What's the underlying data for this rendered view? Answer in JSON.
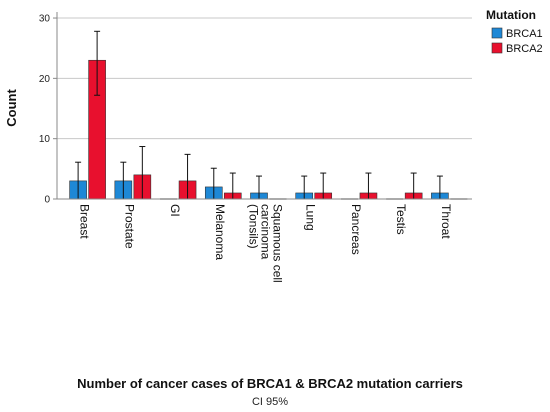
{
  "chart_data": {
    "type": "bar",
    "title": "",
    "xlabel": "Number of cancer cases of BRCA1 & BRCA2 mutation carriers",
    "ylabel": "Count",
    "caption": "CI 95%",
    "legend_title": "Mutation",
    "legend_position": "top-right",
    "ylim": [
      0,
      31
    ],
    "yticks": [
      0,
      10,
      20,
      30
    ],
    "grid": true,
    "categories": [
      "Breast",
      "Prostate",
      "GI",
      "Melanoma",
      "Squamous cell carcinoma (Tonsils)",
      "Lung",
      "Pancreas",
      "Testis",
      "Throat"
    ],
    "category_lines": [
      [
        "Breast"
      ],
      [
        "Prostate"
      ],
      [
        "GI"
      ],
      [
        "Melanoma"
      ],
      [
        "Squamous cell",
        "carcinoma",
        "(Tonsils)"
      ],
      [
        "Lung"
      ],
      [
        "Pancreas"
      ],
      [
        "Testis"
      ],
      [
        "Throat"
      ]
    ],
    "series": [
      {
        "name": "BRCA1",
        "color": "#1e88d6",
        "values": [
          3,
          3,
          0,
          2,
          1,
          1,
          0,
          0,
          1
        ],
        "ci_low": [
          0,
          0,
          0,
          0,
          0,
          0,
          0,
          0,
          0
        ],
        "ci_high": [
          6.1,
          6.1,
          0,
          5.1,
          3.8,
          3.8,
          0,
          0,
          3.8
        ]
      },
      {
        "name": "BRCA2",
        "color": "#e8102e",
        "values": [
          23,
          4,
          3,
          1,
          0,
          1,
          1,
          1,
          0
        ],
        "ci_low": [
          17.2,
          0,
          0,
          0,
          0,
          0,
          0,
          0,
          0
        ],
        "ci_high": [
          27.8,
          8.7,
          7.4,
          4.3,
          0,
          4.3,
          4.3,
          4.3,
          0
        ]
      }
    ]
  }
}
